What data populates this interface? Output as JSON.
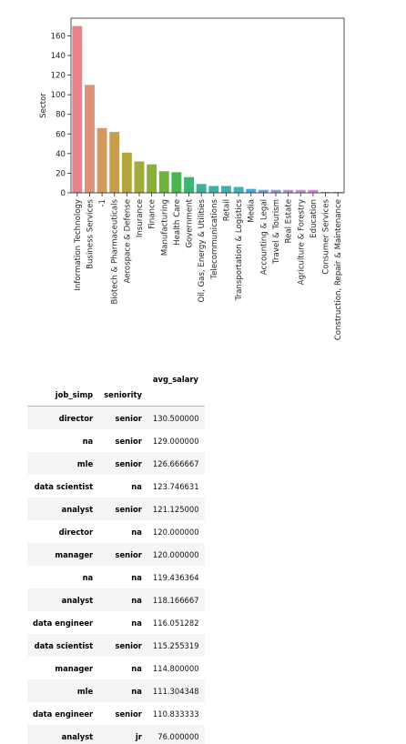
{
  "chart_data": {
    "type": "bar",
    "title": "",
    "xlabel": "",
    "ylabel": "Sector",
    "ylim": [
      0,
      178
    ],
    "yticks": [
      0,
      20,
      40,
      60,
      80,
      100,
      120,
      140,
      160
    ],
    "categories": [
      "Information Technology",
      "Business Services",
      "-1",
      "Biotech & Pharmaceuticals",
      "Aerospace & Defense",
      "Insurance",
      "Finance",
      "Manufacturing",
      "Health Care",
      "Government",
      "Oil, Gas, Energy & Utilities",
      "Telecommunications",
      "Retail",
      "Transportation & Logistics",
      "Media",
      "Accounting & Legal",
      "Travel & Tourism",
      "Real Estate",
      "Agriculture & Forestry",
      "Education",
      "Consumer Services",
      "Construction, Repair & Maintenance"
    ],
    "values": [
      170,
      110,
      66,
      62,
      41,
      32,
      29,
      22,
      21,
      16,
      9,
      7,
      7,
      6,
      4,
      3,
      3,
      3,
      3,
      3,
      1,
      1
    ],
    "colors": [
      "#e8838e",
      "#e0917c",
      "#d49a5e",
      "#c69e4e",
      "#b4a43c",
      "#a3aa3c",
      "#8caf3c",
      "#6fb440",
      "#49b550",
      "#3db474",
      "#3db28f",
      "#3eb0a2",
      "#3fb0b2",
      "#41acc4",
      "#4aa7d8",
      "#6c9fe6",
      "#939ae8",
      "#b28fe6",
      "#c98ce6",
      "#dc84dc",
      "#e486c4",
      "#e889ac"
    ],
    "grid": false
  },
  "table": {
    "column_header": "avg_salary",
    "index_names": [
      "job_simp",
      "seniority"
    ],
    "rows": [
      {
        "job_simp": "director",
        "seniority": "senior",
        "avg_salary": "130.500000"
      },
      {
        "job_simp": "na",
        "seniority": "senior",
        "avg_salary": "129.000000"
      },
      {
        "job_simp": "mle",
        "seniority": "senior",
        "avg_salary": "126.666667"
      },
      {
        "job_simp": "data scientist",
        "seniority": "na",
        "avg_salary": "123.746631"
      },
      {
        "job_simp": "analyst",
        "seniority": "senior",
        "avg_salary": "121.125000"
      },
      {
        "job_simp": "director",
        "seniority": "na",
        "avg_salary": "120.000000"
      },
      {
        "job_simp": "manager",
        "seniority": "senior",
        "avg_salary": "120.000000"
      },
      {
        "job_simp": "na",
        "seniority": "na",
        "avg_salary": "119.436364"
      },
      {
        "job_simp": "analyst",
        "seniority": "na",
        "avg_salary": "118.166667"
      },
      {
        "job_simp": "data engineer",
        "seniority": "na",
        "avg_salary": "116.051282"
      },
      {
        "job_simp": "data scientist",
        "seniority": "senior",
        "avg_salary": "115.255319"
      },
      {
        "job_simp": "manager",
        "seniority": "na",
        "avg_salary": "114.800000"
      },
      {
        "job_simp": "mle",
        "seniority": "na",
        "avg_salary": "111.304348"
      },
      {
        "job_simp": "data engineer",
        "seniority": "senior",
        "avg_salary": "110.833333"
      },
      {
        "job_simp": "analyst",
        "seniority": "jr",
        "avg_salary": "76.000000"
      }
    ]
  }
}
